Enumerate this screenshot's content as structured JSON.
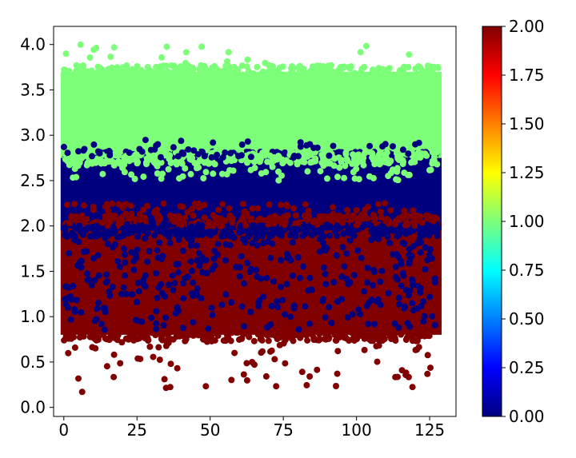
{
  "chart_data": {
    "type": "scatter",
    "title": "",
    "xlabel": "",
    "ylabel": "",
    "xlim": [
      -3.5,
      134
    ],
    "ylim": [
      -0.1,
      4.2
    ],
    "x_ticks": [
      0,
      25,
      50,
      75,
      100,
      125
    ],
    "x_tick_labels": [
      "0",
      "25",
      "50",
      "75",
      "100",
      "125"
    ],
    "y_ticks": [
      0.0,
      0.5,
      1.0,
      1.5,
      2.0,
      2.5,
      3.0,
      3.5,
      4.0
    ],
    "y_tick_labels": [
      "0.0",
      "0.5",
      "1.0",
      "1.5",
      "2.0",
      "2.5",
      "3.0",
      "3.5",
      "4.0"
    ],
    "grid": false,
    "x_range_of_points": [
      0,
      128
    ],
    "colormap": "jet",
    "color_value_range": [
      0.0,
      2.0
    ],
    "colorbar_ticks": [
      "0.00",
      "0.25",
      "0.50",
      "0.75",
      "1.00",
      "1.25",
      "1.50",
      "1.75",
      "2.00"
    ],
    "clusters": [
      {
        "color_value": 2.0,
        "color": "#800000",
        "y_dense_range": [
          0.8,
          2.05
        ],
        "y_sparse_range": [
          0.15,
          0.8
        ]
      },
      {
        "color_value": 0.0,
        "color": "#00007f",
        "y_dense_range": [
          1.95,
          2.75
        ],
        "y_sparse_range": [
          1.1,
          1.95
        ]
      },
      {
        "color_value": 1.0,
        "color": "#7dff7a",
        "y_dense_range": [
          2.75,
          3.7
        ],
        "y_sparse_range": [
          3.7,
          4.0
        ]
      }
    ]
  }
}
